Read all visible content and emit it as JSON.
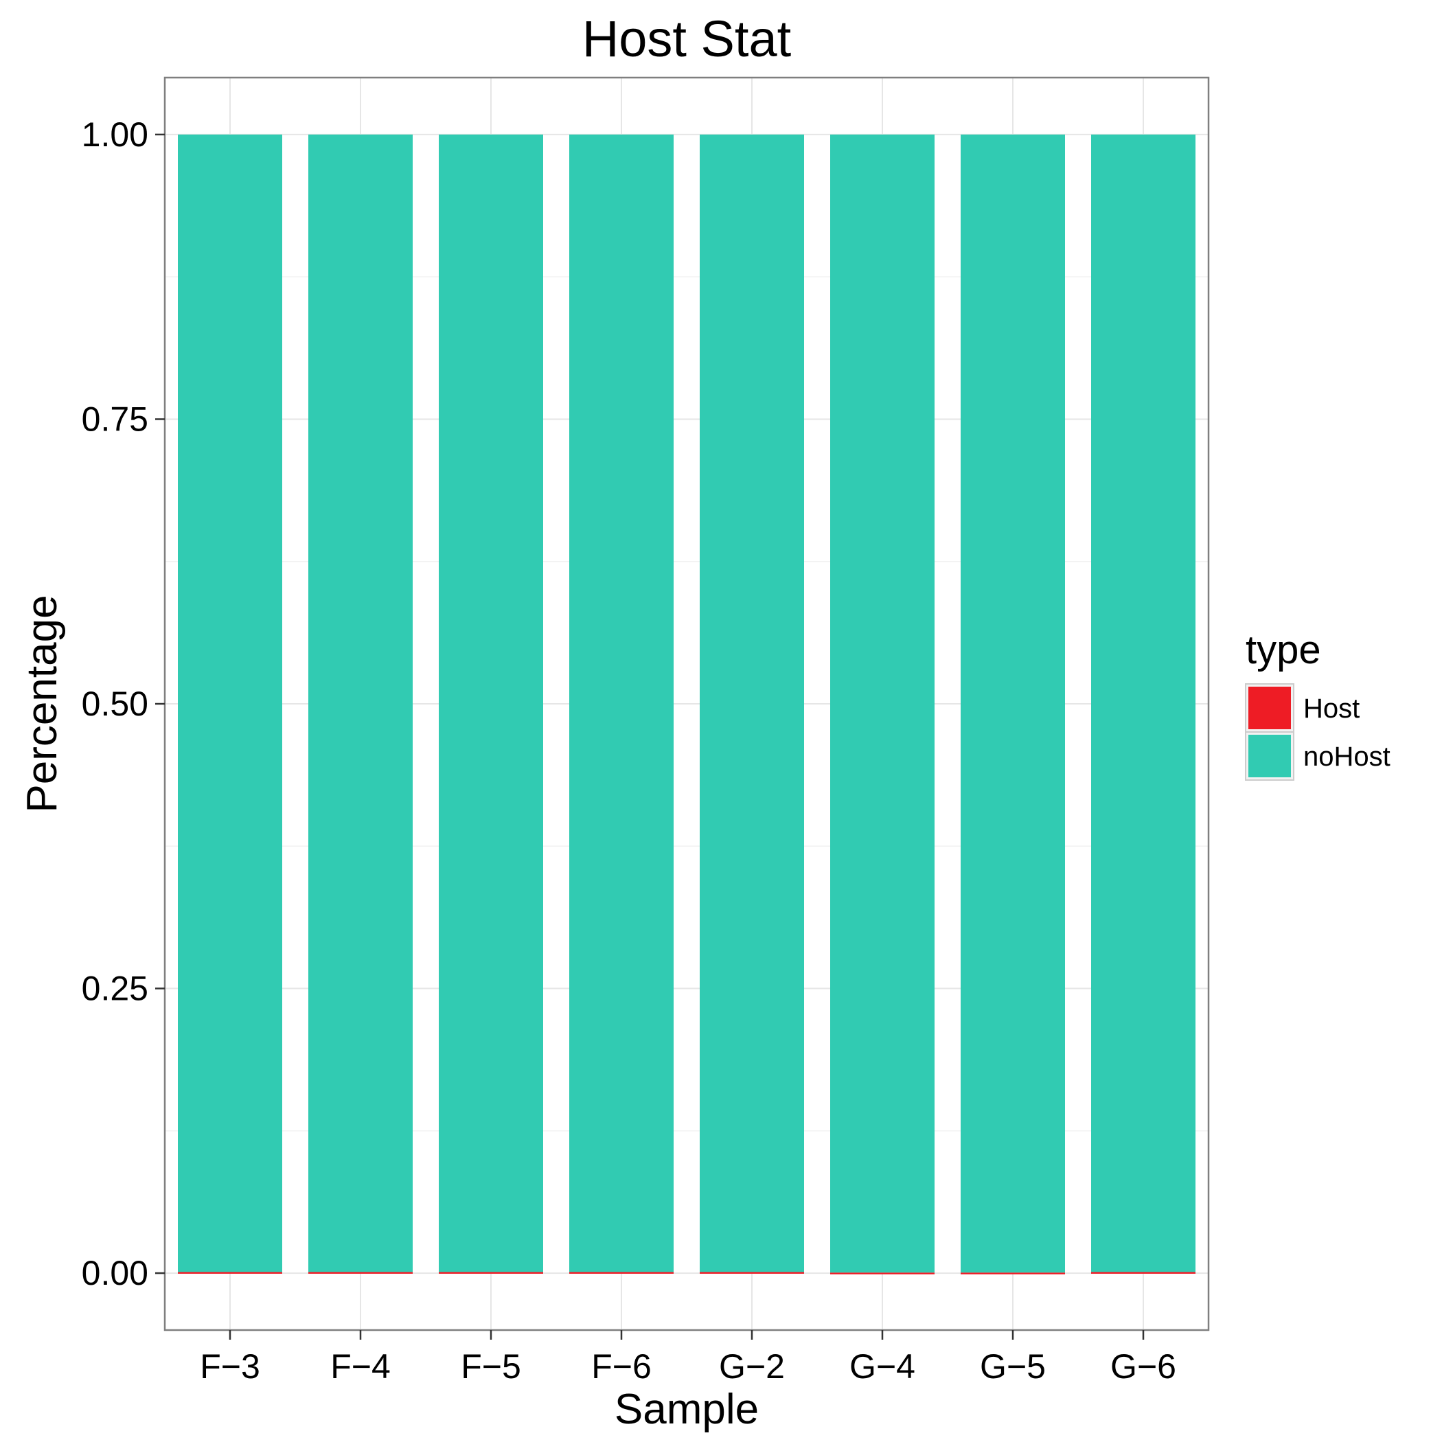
{
  "chart_data": {
    "type": "bar",
    "stacked": true,
    "title": "Host Stat",
    "xlabel": "Sample",
    "ylabel": "Percentage",
    "categories": [
      "F−3",
      "F−4",
      "F−5",
      "F−6",
      "G−2",
      "G−4",
      "G−5",
      "G−6"
    ],
    "series": [
      {
        "name": "Host",
        "color": "#ee1c25",
        "values": [
          0.001,
          0.001,
          0.001,
          0.001,
          0.001,
          0.0005,
          0.0005,
          0.001
        ]
      },
      {
        "name": "noHost",
        "color": "#31cbb2",
        "values": [
          0.999,
          0.999,
          0.999,
          0.999,
          0.999,
          0.9995,
          0.9995,
          0.999
        ]
      }
    ],
    "yticks": [
      0,
      0.25,
      0.5,
      0.75,
      1
    ],
    "ytick_labels": [
      "0.00",
      "0.25",
      "0.50",
      "0.75",
      "1.00"
    ],
    "ylim": [
      -0.05,
      1.05
    ],
    "grid": true,
    "legend": {
      "title": "type",
      "placement": "right",
      "entries": [
        "Host",
        "noHost"
      ]
    }
  }
}
